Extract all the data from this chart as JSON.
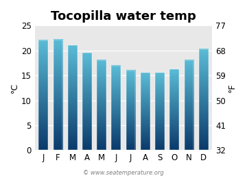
{
  "title": "Tocopilla water temp",
  "months": [
    "J",
    "F",
    "M",
    "A",
    "M",
    "J",
    "J",
    "A",
    "S",
    "O",
    "N",
    "D"
  ],
  "values": [
    22.0,
    22.2,
    21.0,
    19.5,
    18.0,
    17.0,
    16.0,
    15.5,
    15.5,
    16.2,
    18.0,
    20.3
  ],
  "ylim_c": [
    0,
    25
  ],
  "yticks_c": [
    0,
    5,
    10,
    15,
    20,
    25
  ],
  "yticks_f": [
    32,
    41,
    50,
    59,
    68,
    77
  ],
  "ylabel_left": "°C",
  "ylabel_right": "°F",
  "bar_color_top": "#5bbcd6",
  "bar_color_bottom": "#0a3a6b",
  "background_color": "#ffffff",
  "plot_bg_color": "#e8e8e8",
  "watermark": "© www.seatemperature.org",
  "title_fontsize": 13,
  "label_fontsize": 9,
  "tick_fontsize": 8.5
}
